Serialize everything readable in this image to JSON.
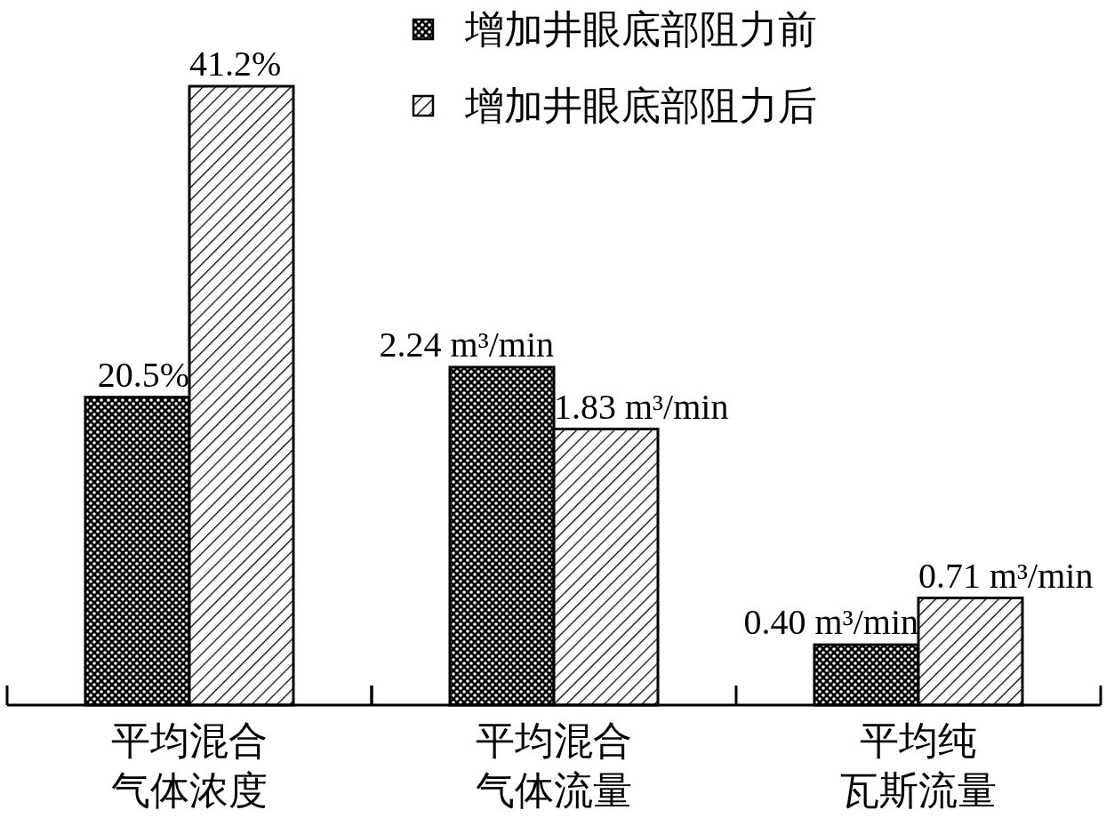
{
  "chart_data": [
    {
      "type": "bar",
      "categories": [
        "平均混合气体浓度"
      ],
      "series": [
        {
          "color": "#000000",
          "values": [
            20.5
          ],
          "value_labels": [
            "20.5%"
          ]
        },
        {
          "color": "#000000",
          "values": [
            41.2
          ],
          "value_labels": [
            "41.2%"
          ]
        }
      ]
    },
    {
      "type": "bar",
      "categories": [
        "平均混合气体流量",
        "平均纯瓦斯流量"
      ],
      "series": [
        {
          "name": "增加井眼底部阻力前",
          "color": "#000000",
          "values": [
            2.24,
            0.4
          ],
          "value_labels": [
            "2.24 m³/min",
            "0.40 m³/min"
          ]
        },
        {
          "name": "增加井眼底部阻力后",
          "color": "#000000",
          "values": [
            1.83,
            0.71
          ],
          "value_labels": [
            "1.83 m³/min",
            "0.71 m³/min"
          ]
        }
      ],
      "legend": "top left"
    }
  ]
}
